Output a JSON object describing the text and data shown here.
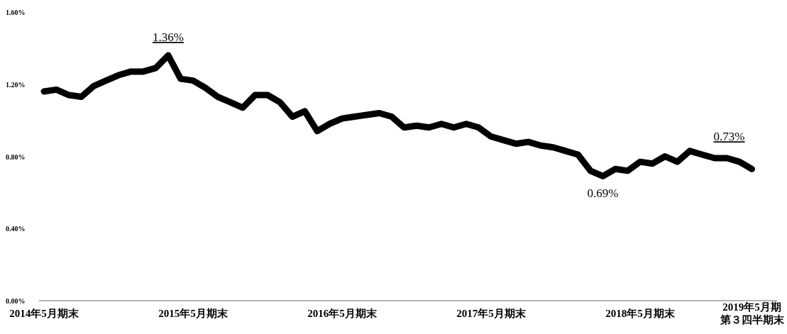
{
  "chart_data": {
    "type": "line",
    "categories": [
      "2014年5月期末",
      null,
      null,
      null,
      null,
      null,
      null,
      null,
      null,
      null,
      null,
      null,
      "2015年5月期末",
      null,
      null,
      null,
      null,
      null,
      null,
      null,
      null,
      null,
      null,
      null,
      "2016年5月期末",
      null,
      null,
      null,
      null,
      null,
      null,
      null,
      null,
      null,
      null,
      null,
      "2017年5月期末",
      null,
      null,
      null,
      null,
      null,
      null,
      null,
      null,
      null,
      null,
      null,
      "2018年5月期末",
      null,
      null,
      null,
      null,
      null,
      null,
      null,
      null,
      "2019年5月期第３四半期末"
    ],
    "series": [
      {
        "color": "#000000",
        "values": [
          1.16,
          1.17,
          1.14,
          1.13,
          1.19,
          1.22,
          1.25,
          1.27,
          1.27,
          1.29,
          1.36,
          1.23,
          1.22,
          1.18,
          1.13,
          1.1,
          1.07,
          1.14,
          1.14,
          1.1,
          1.02,
          1.05,
          0.94,
          0.98,
          1.01,
          1.02,
          1.03,
          1.04,
          1.02,
          0.96,
          0.97,
          0.96,
          0.98,
          0.96,
          0.98,
          0.96,
          0.91,
          0.89,
          0.87,
          0.88,
          0.86,
          0.85,
          0.83,
          0.81,
          0.72,
          0.69,
          0.73,
          0.72,
          0.77,
          0.76,
          0.8,
          0.77,
          0.83,
          0.81,
          0.79,
          0.79,
          0.77,
          0.73
        ]
      }
    ],
    "ylim": [
      0,
      1.6
    ],
    "yticks": [
      {
        "value": 0,
        "label": "0.00%"
      },
      {
        "value": 0.4,
        "label": "0.40%"
      },
      {
        "value": 0.8,
        "label": "0.80%"
      },
      {
        "value": 1.2,
        "label": "1.20%"
      },
      {
        "value": 1.6,
        "label": "1.60%"
      }
    ],
    "annotations": [
      {
        "text": "1.36%",
        "y": 1.36
      },
      {
        "text": "0.69%",
        "y": 0.69
      },
      {
        "text": "0.73%",
        "x": "2019年5月期第３四半期末",
        "y": 0.73
      }
    ]
  }
}
